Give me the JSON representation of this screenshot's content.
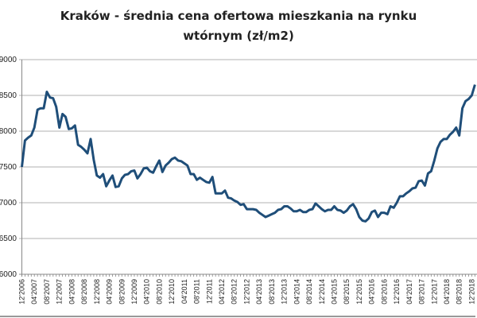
{
  "chart_data": {
    "type": "line",
    "title": [
      "Kraków - średnia cena ofertowa mieszkania na rynku",
      "wtórnym (zł/m2)"
    ],
    "xlabel": "",
    "ylabel": "",
    "ylim": [
      6000,
      9000
    ],
    "yticks": [
      6000,
      6500,
      7000,
      7500,
      8000,
      8500,
      9000
    ],
    "grid": true,
    "line_color": "#1F4E79",
    "xtick_labels": [
      "12'2006",
      "04'2007",
      "08'2007",
      "12'2007",
      "04'2008",
      "08'2008",
      "12'2008",
      "04'2009",
      "08'2009",
      "12'2009",
      "04'2010",
      "08'2010",
      "12'2010",
      "04'2011",
      "08'2011",
      "12'2011",
      "04'2012",
      "08'2012",
      "12'2012",
      "04'2013",
      "08'2013",
      "12'2013",
      "04'2014",
      "08'2014",
      "12'2014",
      "04'2015",
      "08'2015",
      "12'2015",
      "04'2016",
      "08'2016",
      "12'2016",
      "04'2017",
      "08'2017",
      "12'2017",
      "04'2018",
      "08'2018",
      "12'2018"
    ],
    "x": [
      "12'2006",
      "01'2007",
      "02'2007",
      "03'2007",
      "04'2007",
      "05'2007",
      "06'2007",
      "07'2007",
      "08'2007",
      "09'2007",
      "10'2007",
      "11'2007",
      "12'2007",
      "01'2008",
      "02'2008",
      "03'2008",
      "04'2008",
      "05'2008",
      "06'2008",
      "07'2008",
      "08'2008",
      "09'2008",
      "10'2008",
      "11'2008",
      "12'2008",
      "01'2009",
      "02'2009",
      "03'2009",
      "04'2009",
      "05'2009",
      "06'2009",
      "07'2009",
      "08'2009",
      "09'2009",
      "10'2009",
      "11'2009",
      "12'2009",
      "01'2010",
      "02'2010",
      "03'2010",
      "04'2010",
      "05'2010",
      "06'2010",
      "07'2010",
      "08'2010",
      "09'2010",
      "10'2010",
      "11'2010",
      "12'2010",
      "01'2011",
      "02'2011",
      "03'2011",
      "04'2011",
      "05'2011",
      "06'2011",
      "07'2011",
      "08'2011",
      "09'2011",
      "10'2011",
      "11'2011",
      "12'2011",
      "01'2012",
      "02'2012",
      "03'2012",
      "04'2012",
      "05'2012",
      "06'2012",
      "07'2012",
      "08'2012",
      "09'2012",
      "10'2012",
      "11'2012",
      "12'2012",
      "01'2013",
      "02'2013",
      "03'2013",
      "04'2013",
      "05'2013",
      "06'2013",
      "07'2013",
      "08'2013",
      "09'2013",
      "10'2013",
      "11'2013",
      "12'2013",
      "01'2014",
      "02'2014",
      "03'2014",
      "04'2014",
      "05'2014",
      "06'2014",
      "07'2014",
      "08'2014",
      "09'2014",
      "10'2014",
      "11'2014",
      "12'2014",
      "01'2015",
      "02'2015",
      "03'2015",
      "04'2015",
      "05'2015",
      "06'2015",
      "07'2015",
      "08'2015",
      "09'2015",
      "10'2015",
      "11'2015",
      "12'2015",
      "01'2016",
      "02'2016",
      "03'2016",
      "04'2016",
      "05'2016",
      "06'2016",
      "07'2016",
      "08'2016",
      "09'2016",
      "10'2016",
      "11'2016",
      "12'2016",
      "01'2017",
      "02'2017",
      "03'2017",
      "04'2017",
      "05'2017",
      "06'2017",
      "07'2017",
      "08'2017",
      "09'2017",
      "10'2017",
      "11'2017",
      "12'2017",
      "01'2018",
      "02'2018",
      "03'2018",
      "04'2018",
      "05'2018",
      "06'2018",
      "07'2018",
      "08'2018",
      "09'2018",
      "10'2018",
      "11'2018",
      "12'2018",
      "01'2019"
    ],
    "values": [
      7500,
      7870,
      7910,
      7940,
      8050,
      8300,
      8320,
      8320,
      8550,
      8470,
      8460,
      8340,
      8050,
      8240,
      8200,
      8030,
      8040,
      8080,
      7810,
      7780,
      7740,
      7690,
      7890,
      7600,
      7380,
      7350,
      7400,
      7230,
      7310,
      7380,
      7220,
      7230,
      7340,
      7390,
      7400,
      7440,
      7450,
      7340,
      7400,
      7480,
      7490,
      7440,
      7420,
      7510,
      7590,
      7430,
      7520,
      7560,
      7610,
      7630,
      7590,
      7580,
      7550,
      7520,
      7400,
      7400,
      7320,
      7350,
      7320,
      7290,
      7280,
      7360,
      7130,
      7130,
      7130,
      7170,
      7070,
      7060,
      7030,
      7010,
      6970,
      6980,
      6910,
      6910,
      6910,
      6900,
      6860,
      6830,
      6800,
      6820,
      6840,
      6860,
      6900,
      6910,
      6950,
      6950,
      6920,
      6880,
      6880,
      6900,
      6870,
      6870,
      6900,
      6910,
      6990,
      6950,
      6910,
      6880,
      6900,
      6900,
      6950,
      6900,
      6890,
      6860,
      6890,
      6950,
      6980,
      6910,
      6800,
      6750,
      6740,
      6780,
      6870,
      6890,
      6800,
      6860,
      6860,
      6840,
      6950,
      6930,
      7000,
      7090,
      7090,
      7130,
      7160,
      7200,
      7210,
      7300,
      7310,
      7240,
      7410,
      7440,
      7590,
      7760,
      7850,
      7890,
      7890,
      7950,
      7990,
      8050,
      7940,
      8320,
      8420,
      8450,
      8500,
      8650
    ]
  }
}
